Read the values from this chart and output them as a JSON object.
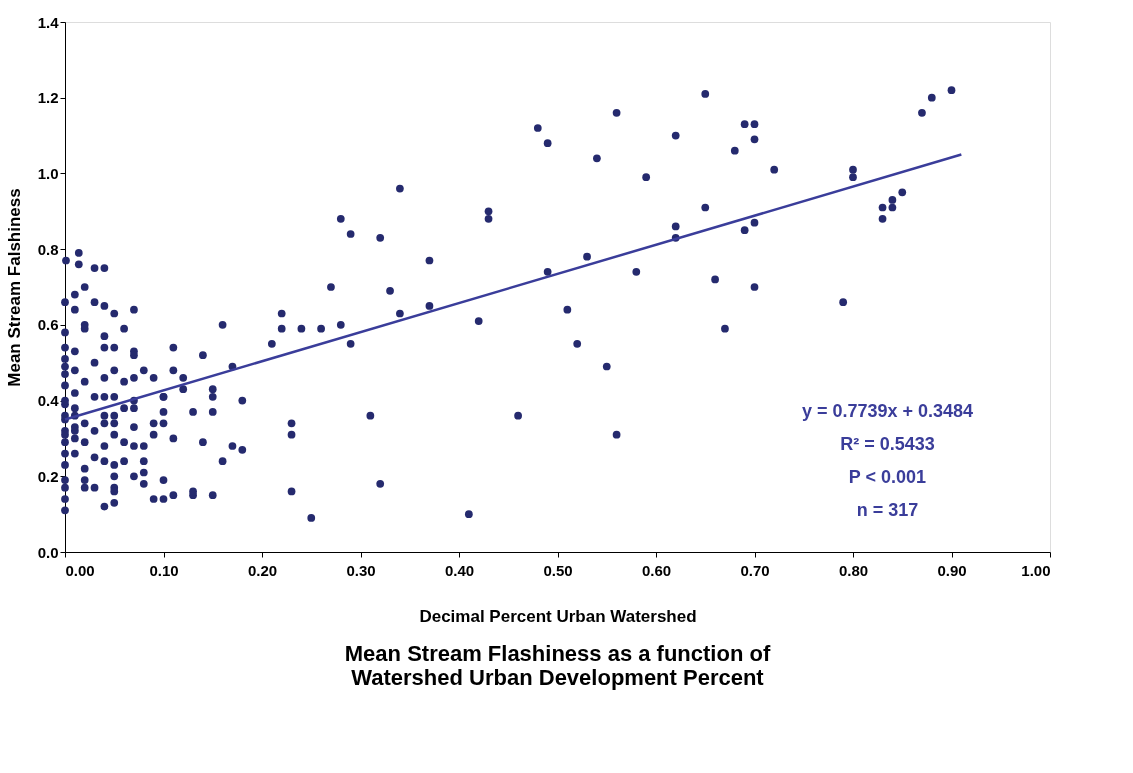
{
  "chart_data": {
    "type": "scatter",
    "title": "Mean Stream Flashiness as a function of\nWatershed Urban Development Percent",
    "xlabel": "Decimal Percent Urban Watershed",
    "ylabel": "Mean Stream Falshiness",
    "xlim": [
      0,
      1
    ],
    "ylim": [
      0,
      1.4
    ],
    "xticks": [
      {
        "value": 0,
        "label": "0.00"
      },
      {
        "value": 0.1,
        "label": "0.10"
      },
      {
        "value": 0.2,
        "label": "0.20"
      },
      {
        "value": 0.3,
        "label": "0.30"
      },
      {
        "value": 0.4,
        "label": "0.40"
      },
      {
        "value": 0.5,
        "label": "0.50"
      },
      {
        "value": 0.6,
        "label": "0.60"
      },
      {
        "value": 0.7,
        "label": "0.70"
      },
      {
        "value": 0.8,
        "label": "0.80"
      },
      {
        "value": 0.9,
        "label": "0.90"
      },
      {
        "value": 1,
        "label": "1.00"
      }
    ],
    "yticks": [
      {
        "value": 0,
        "label": "0.0"
      },
      {
        "value": 0.2,
        "label": "0.2"
      },
      {
        "value": 0.4,
        "label": "0.4"
      },
      {
        "value": 0.6,
        "label": "0.6"
      },
      {
        "value": 0.8,
        "label": "0.8"
      },
      {
        "value": 1,
        "label": "1.0"
      },
      {
        "value": 1.2,
        "label": "1.2"
      },
      {
        "value": 1.4,
        "label": "1.4"
      }
    ],
    "grid": false,
    "annotations": [
      "y = 0.7739x + 0.3484",
      "R² = 0.5433",
      "P < 0.001",
      "n = 317"
    ],
    "series": [
      {
        "marker": "circle",
        "color": "#252a6e",
        "x": [
          0.9,
          0.88,
          0.87,
          0.85,
          0.84,
          0.84,
          0.83,
          0.83,
          0.8,
          0.8,
          0.79,
          0.72,
          0.7,
          0.69,
          0.7,
          0.7,
          0.69,
          0.7,
          0.68,
          0.67,
          0.65,
          0.65,
          0.66,
          0.62,
          0.62,
          0.62,
          0.59,
          0.58,
          0.56,
          0.56,
          0.55,
          0.54,
          0.53,
          0.52,
          0.51,
          0.49,
          0.49,
          0.48,
          0.46,
          0.42,
          0.41,
          0.43,
          0.43,
          0.37,
          0.37,
          0.34,
          0.34,
          0.33,
          0.32,
          0.32,
          0.31,
          0.28,
          0.29,
          0.27,
          0.28,
          0.26,
          0.29,
          0.24,
          0.22,
          0.22,
          0.21,
          0.23,
          0.23,
          0.23,
          0.25,
          0.18,
          0.18,
          0.17,
          0.16,
          0.16,
          0.15,
          0.15,
          0.15,
          0.15,
          0.13,
          0.14,
          0.14,
          0.014,
          0.001,
          0.014,
          0.03,
          0.04,
          0.02,
          0.01,
          0.0,
          0.03,
          0.04,
          0.01,
          0.05,
          0.07,
          0.02,
          0.02,
          0.06,
          0.0,
          0.04,
          0.04,
          0.05,
          0.11,
          0.0,
          0.01,
          0.07,
          0.07,
          0.03,
          0.05,
          0.08,
          0.11,
          0.0,
          0.02,
          0.04,
          0.06,
          0.07,
          0.09,
          0.12,
          0.12,
          0.0,
          0.01,
          0.03,
          0.04,
          0.05,
          0.07,
          0.1,
          0.1,
          0.0,
          0.06,
          0.07,
          0.1,
          0.13,
          0.0,
          0.01,
          0.04,
          0.05,
          0.02,
          0.04,
          0.05,
          0.07,
          0.09,
          0.1,
          0.0,
          0.01,
          0.03,
          0.05,
          0.09,
          0.11,
          0.0,
          0.02,
          0.04,
          0.06,
          0.07,
          0.08,
          0.0,
          0.01,
          0.03,
          0.04,
          0.05,
          0.06,
          0.08,
          0.02,
          0.0,
          0.07,
          0.08,
          0.05,
          0.0,
          0.02,
          0.08,
          0.1,
          0.02,
          0.03,
          0.05,
          0.05,
          0.0,
          0.09,
          0.1,
          0.11,
          0.13,
          0.0,
          0.04,
          0.05,
          0.0,
          0.0,
          0.0,
          0.0,
          0.01,
          0.01,
          0.01,
          0.0,
          0.0,
          0.01,
          0.17
        ],
        "values": [
          1.22,
          1.2,
          1.16,
          0.95,
          0.93,
          0.91,
          0.91,
          0.88,
          1.01,
          0.99,
          0.66,
          1.01,
          1.13,
          1.13,
          1.09,
          0.87,
          0.85,
          0.7,
          1.06,
          0.59,
          1.21,
          0.91,
          0.72,
          0.86,
          0.83,
          1.1,
          0.99,
          0.74,
          0.31,
          1.16,
          0.49,
          1.04,
          0.78,
          0.55,
          0.64,
          0.74,
          1.08,
          1.12,
          0.36,
          0.61,
          0.1,
          0.9,
          0.88,
          0.65,
          0.77,
          0.63,
          0.96,
          0.69,
          0.83,
          0.18,
          0.36,
          0.88,
          0.84,
          0.7,
          0.6,
          0.59,
          0.55,
          0.59,
          0.63,
          0.59,
          0.55,
          0.31,
          0.34,
          0.16,
          0.09,
          0.4,
          0.27,
          0.28,
          0.24,
          0.6,
          0.41,
          0.43,
          0.37,
          0.15,
          0.15,
          0.52,
          0.29,
          0.79,
          0.77,
          0.76,
          0.75,
          0.75,
          0.7,
          0.68,
          0.66,
          0.66,
          0.65,
          0.64,
          0.63,
          0.64,
          0.6,
          0.59,
          0.59,
          0.58,
          0.57,
          0.54,
          0.54,
          0.54,
          0.54,
          0.53,
          0.53,
          0.52,
          0.5,
          0.48,
          0.48,
          0.48,
          0.49,
          0.45,
          0.46,
          0.45,
          0.46,
          0.46,
          0.46,
          0.43,
          0.44,
          0.42,
          0.41,
          0.41,
          0.41,
          0.4,
          0.41,
          0.41,
          0.39,
          0.38,
          0.38,
          0.37,
          0.37,
          0.36,
          0.36,
          0.36,
          0.36,
          0.34,
          0.34,
          0.34,
          0.33,
          0.34,
          0.34,
          0.32,
          0.32,
          0.32,
          0.31,
          0.31,
          0.3,
          0.29,
          0.29,
          0.28,
          0.29,
          0.28,
          0.28,
          0.26,
          0.26,
          0.25,
          0.24,
          0.23,
          0.24,
          0.24,
          0.22,
          0.23,
          0.2,
          0.21,
          0.2,
          0.19,
          0.19,
          0.18,
          0.19,
          0.17,
          0.17,
          0.17,
          0.16,
          0.17,
          0.14,
          0.14,
          0.15,
          0.16,
          0.14,
          0.12,
          0.13,
          0.11,
          0.47,
          0.4,
          0.35,
          0.48,
          0.38,
          0.33,
          0.31,
          0.51,
          0.3,
          0.49
        ]
      },
      {
        "type": "line",
        "marker": "none",
        "line_style": "solid",
        "color": "#3a3d9a",
        "x": [
          0,
          0.91
        ],
        "values": [
          0.35,
          1.05
        ]
      }
    ]
  }
}
